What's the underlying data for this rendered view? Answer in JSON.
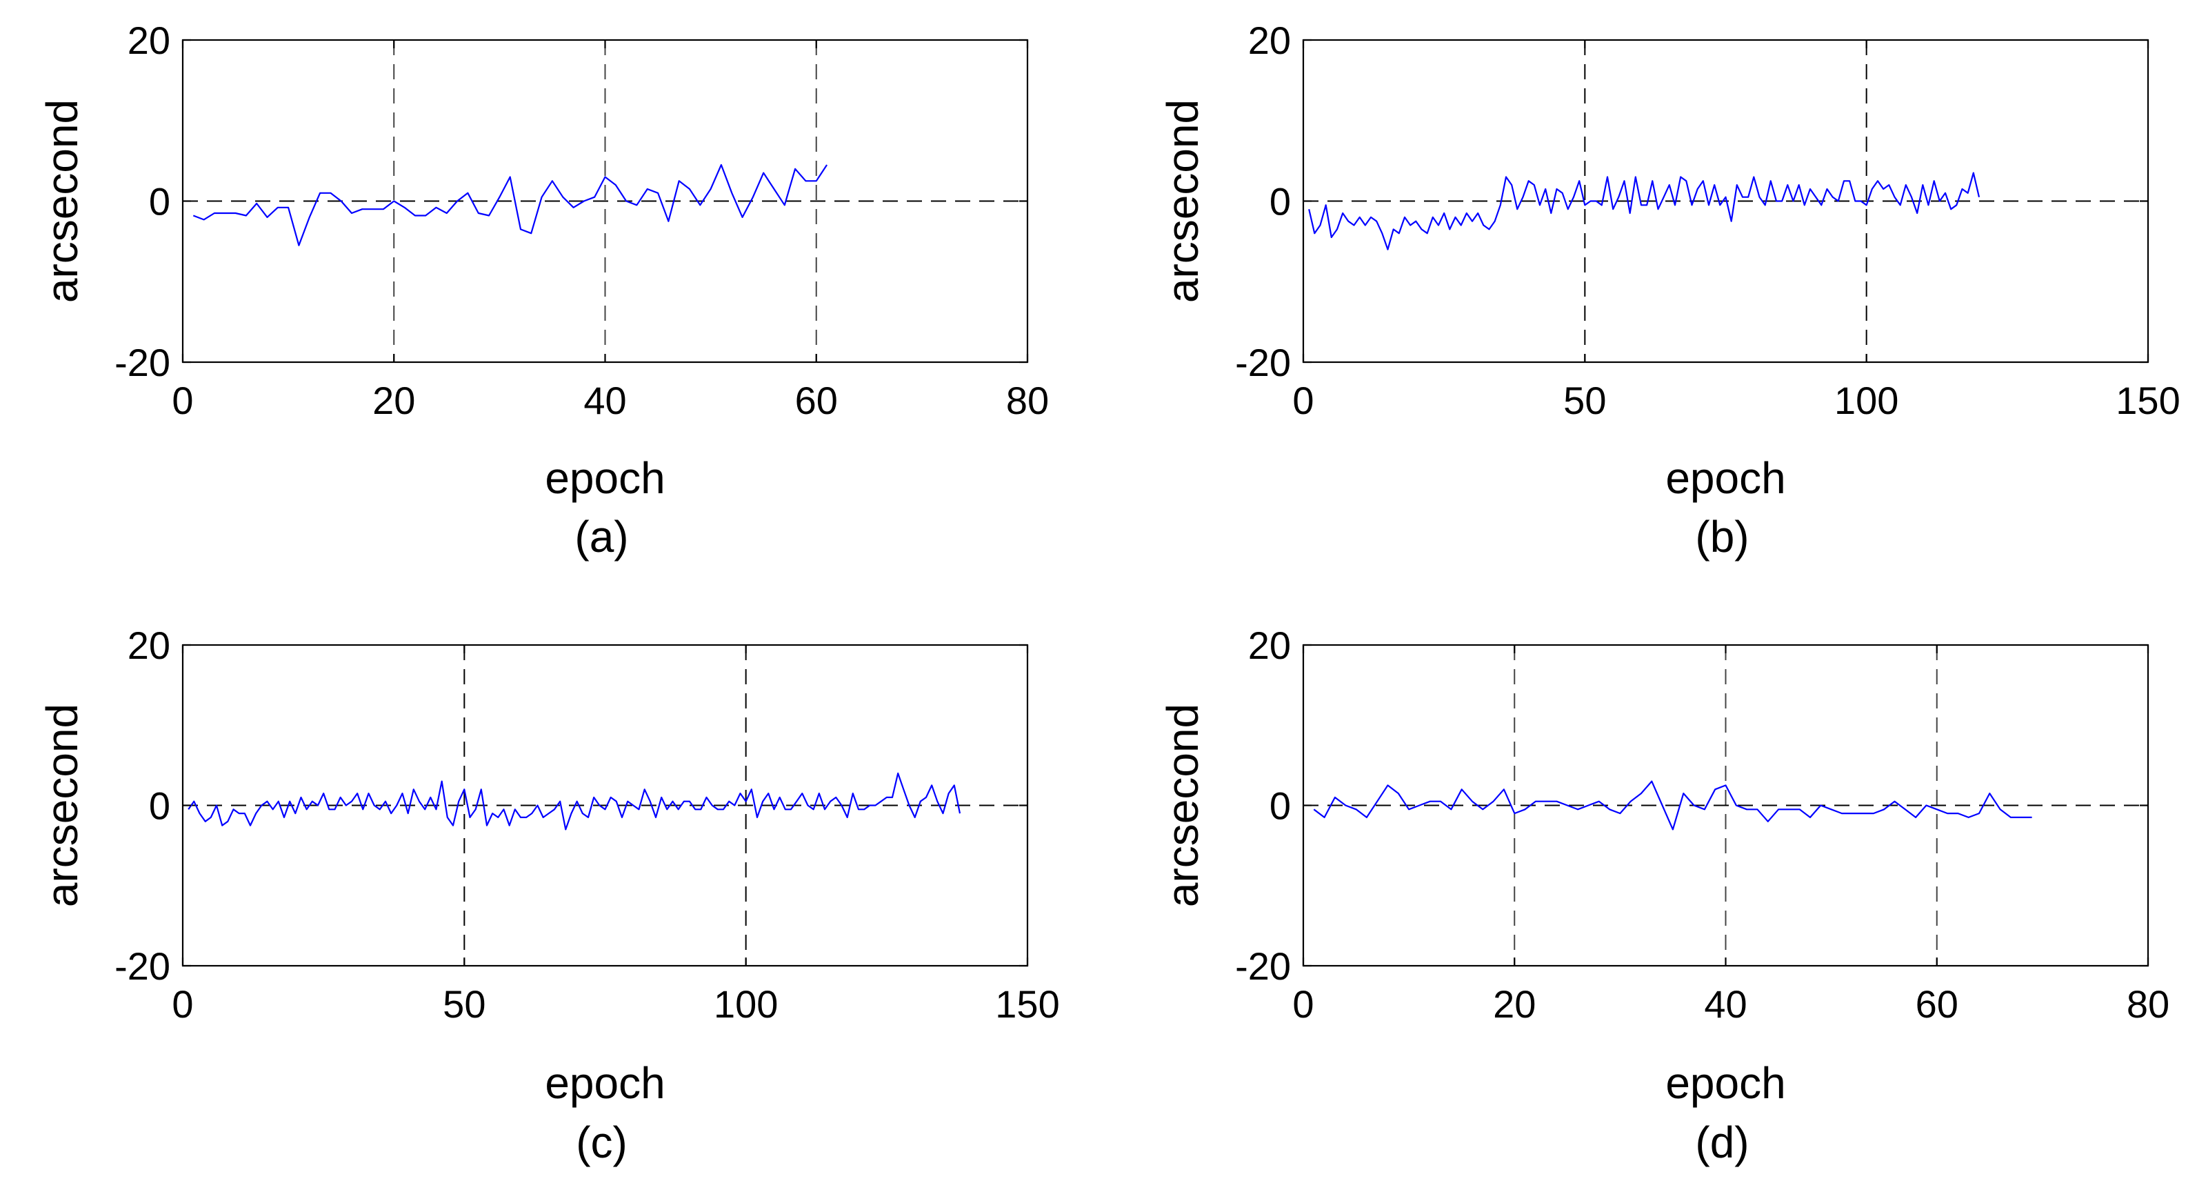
{
  "chart_data": [
    {
      "type": "line",
      "caption": "(a)",
      "xlabel": "epoch",
      "ylabel": "arcsecond",
      "xlim": [
        0,
        80
      ],
      "ylim": [
        -20,
        20
      ],
      "xticks": [
        0,
        20,
        40,
        60,
        80
      ],
      "yticks": [
        -20,
        0,
        20
      ],
      "grid": "vertical dashed at x ticks, horizontal dashed at y=0",
      "series_color": "#0000ff",
      "x": [
        1,
        2,
        3,
        4,
        5,
        6,
        7,
        8,
        9,
        10,
        11,
        12,
        13,
        14,
        15,
        16,
        17,
        18,
        19,
        20,
        21,
        22,
        23,
        24,
        25,
        26,
        27,
        28,
        29,
        30,
        31,
        32,
        33,
        34,
        35,
        36,
        37,
        38,
        39,
        40,
        41,
        42,
        43,
        44,
        45,
        46,
        47,
        48,
        49,
        50,
        51,
        52,
        53,
        54,
        55,
        56,
        57,
        58,
        59,
        60,
        61
      ],
      "values": [
        -1.8,
        -2.3,
        -1.5,
        -1.5,
        -1.5,
        -1.8,
        -0.3,
        -2.0,
        -0.8,
        -0.8,
        -5.5,
        -2.0,
        1.0,
        1.0,
        0.0,
        -1.5,
        -1.0,
        -1.0,
        -1.0,
        0.0,
        -0.8,
        -1.8,
        -1.8,
        -0.8,
        -1.5,
        0.0,
        1.0,
        -1.5,
        -1.8,
        0.5,
        3.0,
        -3.5,
        -4.0,
        0.5,
        2.5,
        0.5,
        -0.8,
        0.0,
        0.5,
        3.0,
        2.0,
        0.0,
        -0.5,
        1.5,
        1.0,
        -2.5,
        2.5,
        1.5,
        -0.5,
        1.5,
        4.5,
        1.0,
        -2.0,
        0.5,
        3.5,
        1.5,
        -0.5,
        4.0,
        2.5,
        2.5,
        4.5
      ]
    },
    {
      "type": "line",
      "caption": "(b)",
      "xlabel": "epoch",
      "ylabel": "arcsecond",
      "xlim": [
        0,
        150
      ],
      "ylim": [
        -20,
        20
      ],
      "xticks": [
        0,
        50,
        100,
        150
      ],
      "yticks": [
        -20,
        0,
        20
      ],
      "grid": "vertical dashed at x ticks, horizontal dashed at y=0",
      "series_color": "#0000ff",
      "x": [
        1,
        2,
        3,
        4,
        5,
        6,
        7,
        8,
        9,
        10,
        11,
        12,
        13,
        14,
        15,
        16,
        17,
        18,
        19,
        20,
        21,
        22,
        23,
        24,
        25,
        26,
        27,
        28,
        29,
        30,
        31,
        32,
        33,
        34,
        35,
        36,
        37,
        38,
        39,
        40,
        41,
        42,
        43,
        44,
        45,
        46,
        47,
        48,
        49,
        50,
        51,
        52,
        53,
        54,
        55,
        56,
        57,
        58,
        59,
        60,
        61,
        62,
        63,
        64,
        65,
        66,
        67,
        68,
        69,
        70,
        71,
        72,
        73,
        74,
        75,
        76,
        77,
        78,
        79,
        80,
        81,
        82,
        83,
        84,
        85,
        86,
        87,
        88,
        89,
        90,
        91,
        92,
        93,
        94,
        95,
        96,
        97,
        98,
        99,
        100,
        101,
        102,
        103,
        104,
        105,
        106,
        107,
        108,
        109,
        110,
        111,
        112,
        113,
        114,
        115,
        116,
        117,
        118,
        119,
        120
      ],
      "values": [
        -1.0,
        -4.0,
        -3.0,
        -0.5,
        -4.5,
        -3.5,
        -1.5,
        -2.5,
        -3.0,
        -2.0,
        -3.0,
        -2.0,
        -2.5,
        -4.0,
        -6.0,
        -3.5,
        -4.0,
        -2.0,
        -3.0,
        -2.5,
        -3.5,
        -4.0,
        -2.0,
        -3.0,
        -1.5,
        -3.5,
        -2.0,
        -3.0,
        -1.5,
        -2.5,
        -1.5,
        -3.0,
        -3.5,
        -2.5,
        -0.5,
        3.0,
        2.0,
        -1.0,
        0.5,
        2.5,
        2.0,
        -0.5,
        1.5,
        -1.5,
        1.5,
        1.0,
        -1.0,
        0.5,
        2.5,
        -0.5,
        0.0,
        0.0,
        -0.5,
        3.0,
        -1.0,
        0.5,
        2.5,
        -1.5,
        3.0,
        -0.5,
        -0.5,
        2.5,
        -1.0,
        0.5,
        2.0,
        -0.5,
        3.0,
        2.5,
        -0.5,
        1.5,
        2.5,
        -0.5,
        2.0,
        -0.5,
        0.5,
        -2.5,
        2.0,
        0.5,
        0.5,
        3.0,
        0.5,
        -0.5,
        2.5,
        0.0,
        0.0,
        2.0,
        0.0,
        2.0,
        -0.5,
        1.5,
        0.5,
        -0.5,
        1.5,
        0.5,
        0.0,
        2.5,
        2.5,
        0.0,
        0.0,
        -0.5,
        1.5,
        2.5,
        1.5,
        2.0,
        0.5,
        -0.5,
        2.0,
        0.5,
        -1.5,
        2.0,
        -0.5,
        2.5,
        0.0,
        1.0,
        -1.0,
        -0.5,
        1.5,
        1.0,
        3.5,
        0.5
      ]
    },
    {
      "type": "line",
      "caption": "(c)",
      "xlabel": "epoch",
      "ylabel": "arcsecond",
      "xlim": [
        0,
        150
      ],
      "ylim": [
        -20,
        20
      ],
      "xticks": [
        0,
        50,
        100,
        150
      ],
      "yticks": [
        -20,
        0,
        20
      ],
      "grid": "vertical dashed at x ticks, horizontal dashed at y=0",
      "series_color": "#0000ff",
      "x": [
        1,
        2,
        3,
        4,
        5,
        6,
        7,
        8,
        9,
        10,
        11,
        12,
        13,
        14,
        15,
        16,
        17,
        18,
        19,
        20,
        21,
        22,
        23,
        24,
        25,
        26,
        27,
        28,
        29,
        30,
        31,
        32,
        33,
        34,
        35,
        36,
        37,
        38,
        39,
        40,
        41,
        42,
        43,
        44,
        45,
        46,
        47,
        48,
        49,
        50,
        51,
        52,
        53,
        54,
        55,
        56,
        57,
        58,
        59,
        60,
        61,
        62,
        63,
        64,
        65,
        66,
        67,
        68,
        69,
        70,
        71,
        72,
        73,
        74,
        75,
        76,
        77,
        78,
        79,
        80,
        81,
        82,
        83,
        84,
        85,
        86,
        87,
        88,
        89,
        90,
        91,
        92,
        93,
        94,
        95,
        96,
        97,
        98,
        99,
        100,
        101,
        102,
        103,
        104,
        105,
        106,
        107,
        108,
        109,
        110,
        111,
        112,
        113,
        114,
        115,
        116,
        117,
        118,
        119,
        120,
        121,
        122,
        123,
        124,
        125,
        126,
        127,
        128,
        129,
        130,
        131,
        132,
        133,
        134,
        135,
        136,
        137,
        138
      ],
      "values": [
        -0.5,
        0.5,
        -1.0,
        -2.0,
        -1.5,
        0.0,
        -2.5,
        -2.0,
        -0.5,
        -1.0,
        -1.0,
        -2.5,
        -1.0,
        0.0,
        0.5,
        -0.5,
        0.5,
        -1.5,
        0.5,
        -1.0,
        1.0,
        -0.5,
        0.5,
        0.0,
        1.5,
        -0.5,
        -0.5,
        1.0,
        0.0,
        0.5,
        1.5,
        -0.5,
        1.5,
        0.0,
        -0.5,
        0.5,
        -1.0,
        0.0,
        1.5,
        -1.0,
        2.0,
        0.5,
        -0.5,
        1.0,
        -0.5,
        3.0,
        -1.5,
        -2.5,
        0.5,
        2.0,
        -1.5,
        -0.5,
        2.0,
        -2.5,
        -1.0,
        -1.5,
        -0.5,
        -2.5,
        -0.5,
        -1.5,
        -1.5,
        -1.0,
        0.0,
        -1.5,
        -1.0,
        -0.5,
        0.5,
        -3.0,
        -1.0,
        0.5,
        -1.0,
        -1.5,
        1.0,
        0.0,
        -0.5,
        1.0,
        0.5,
        -1.5,
        0.5,
        0.0,
        -0.5,
        2.0,
        0.5,
        -1.5,
        1.0,
        -0.5,
        0.5,
        -0.5,
        0.5,
        0.5,
        -0.5,
        -0.5,
        1.0,
        0.0,
        -0.5,
        -0.5,
        0.5,
        0.0,
        1.5,
        0.5,
        2.0,
        -1.5,
        0.5,
        1.5,
        -0.5,
        1.0,
        -0.5,
        -0.5,
        0.5,
        1.5,
        0.0,
        -0.5,
        1.5,
        -0.5,
        0.5,
        1.0,
        0.0,
        -1.5,
        1.5,
        -0.5,
        -0.5,
        0.0,
        0.0,
        0.5,
        1.0,
        1.0,
        4.0,
        2.0,
        0.0,
        -1.5,
        0.5,
        1.0,
        2.5,
        0.5,
        -1.0,
        1.5,
        2.5,
        -1.0
      ]
    },
    {
      "type": "line",
      "caption": "(d)",
      "xlabel": "epoch",
      "ylabel": "arcsecond",
      "xlim": [
        0,
        80
      ],
      "ylim": [
        -20,
        20
      ],
      "xticks": [
        0,
        20,
        40,
        60,
        80
      ],
      "yticks": [
        -20,
        0,
        20
      ],
      "grid": "vertical dashed at x ticks, horizontal dashed at y=0",
      "series_color": "#0000ff",
      "x": [
        1,
        2,
        3,
        4,
        5,
        6,
        7,
        8,
        9,
        10,
        11,
        12,
        13,
        14,
        15,
        16,
        17,
        18,
        19,
        20,
        21,
        22,
        23,
        24,
        25,
        26,
        27,
        28,
        29,
        30,
        31,
        32,
        33,
        34,
        35,
        36,
        37,
        38,
        39,
        40,
        41,
        42,
        43,
        44,
        45,
        46,
        47,
        48,
        49,
        50,
        51,
        52,
        53,
        54,
        55,
        56,
        57,
        58,
        59,
        60,
        61,
        62,
        63,
        64,
        65,
        66,
        67,
        68,
        69
      ],
      "values": [
        -0.5,
        -1.5,
        1.0,
        0.0,
        -0.5,
        -1.5,
        0.5,
        2.5,
        1.5,
        -0.5,
        0.0,
        0.5,
        0.5,
        -0.5,
        2.0,
        0.5,
        -0.5,
        0.5,
        2.0,
        -1.0,
        -0.5,
        0.5,
        0.5,
        0.5,
        0.0,
        -0.5,
        0.0,
        0.5,
        -0.5,
        -1.0,
        0.5,
        1.5,
        3.0,
        0.0,
        -3.0,
        1.5,
        0.0,
        -0.5,
        2.0,
        2.5,
        0.0,
        -0.5,
        -0.5,
        -2.0,
        -0.5,
        -0.5,
        -0.5,
        -1.5,
        0.0,
        -0.5,
        -1.0,
        -1.0,
        -1.0,
        -1.0,
        -0.5,
        0.5,
        -0.5,
        -1.5,
        0.0,
        -0.5,
        -1.0,
        -1.0,
        -1.5,
        -1.0,
        1.5,
        -0.5,
        -1.5,
        -1.5,
        -1.5
      ]
    }
  ]
}
